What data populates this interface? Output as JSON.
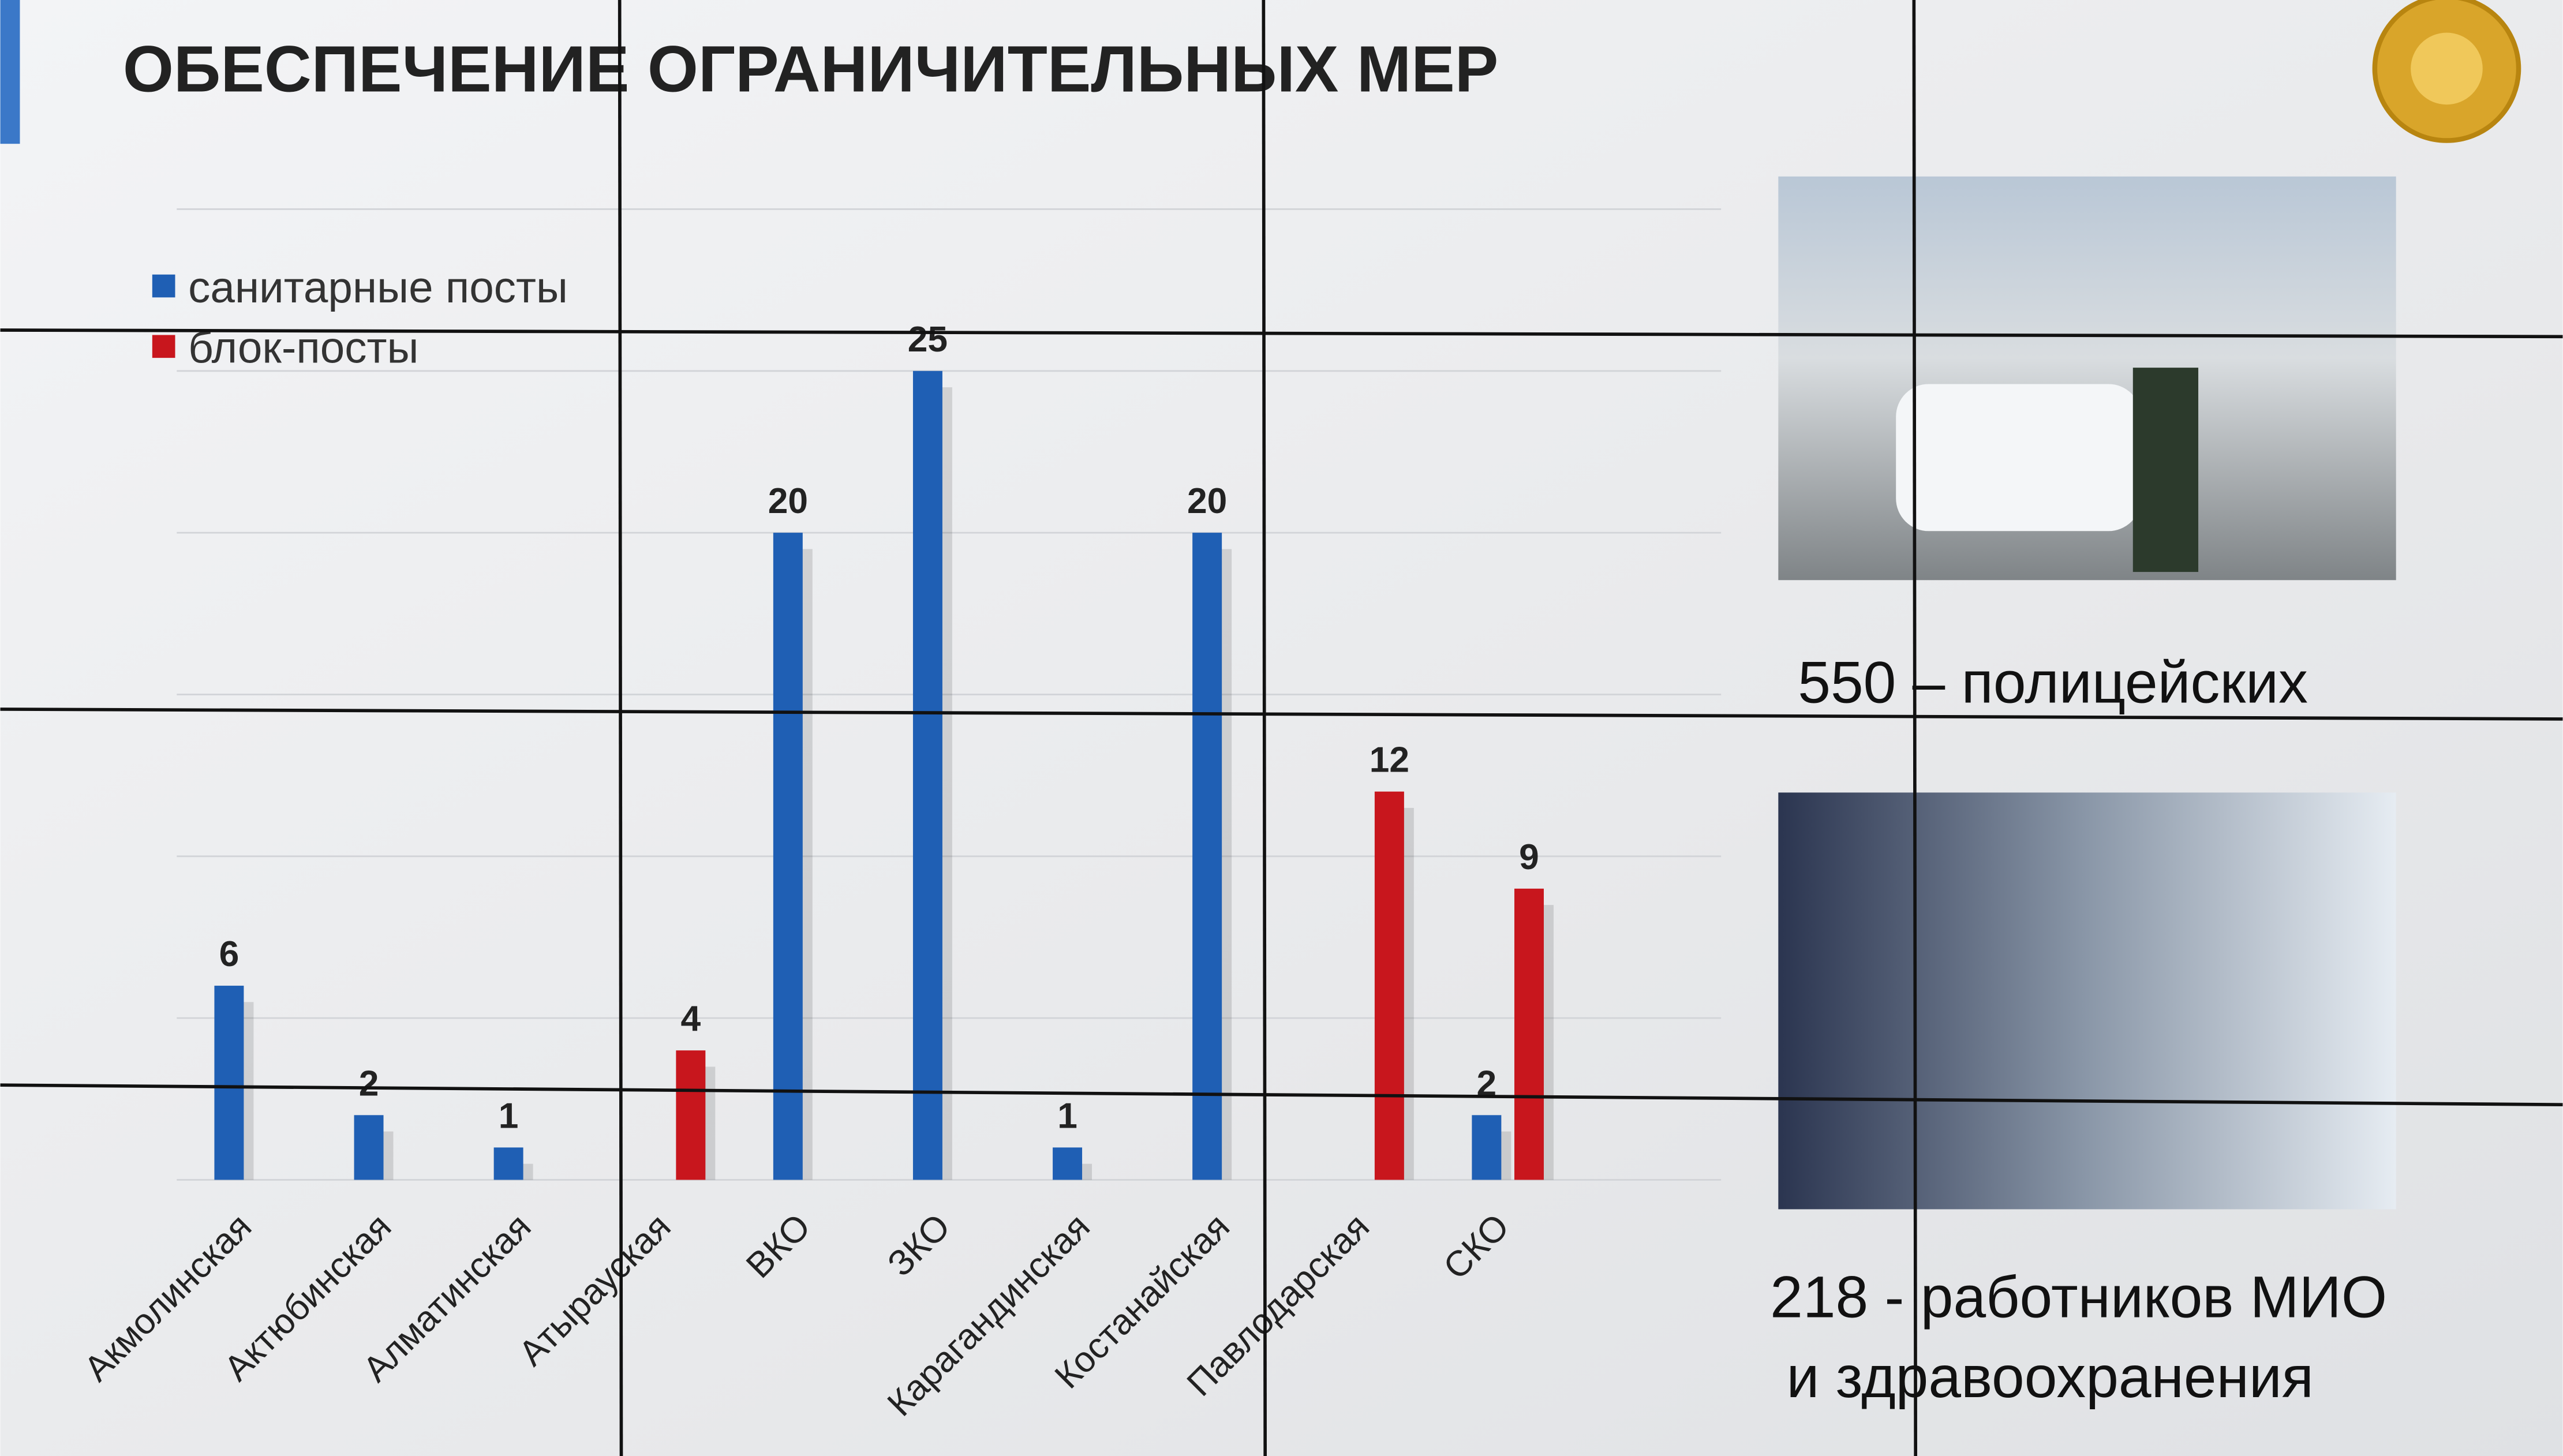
{
  "chart_data": {
    "type": "bar",
    "title": "ОБЕСПЕЧЕНИЕ ОГРАНИЧИТЕЛЬНЫХ МЕР",
    "categories": [
      "Акмолинская",
      "Актюбинская",
      "Алматинская",
      "Атырауская",
      "ВКО",
      "ЗКО",
      "Карагандинская",
      "Костанайская",
      "Павлодарская",
      "СКО"
    ],
    "series": [
      {
        "name": "санитарные посты",
        "color": "#1f5fb4",
        "values": [
          6,
          2,
          1,
          null,
          20,
          25,
          1,
          20,
          null,
          2
        ]
      },
      {
        "name": "блок-посты",
        "color": "#c8161d",
        "values": [
          null,
          null,
          null,
          4,
          null,
          null,
          null,
          null,
          12,
          9
        ]
      }
    ],
    "ylim": [
      0,
      30
    ],
    "yticks": [
      0,
      5,
      10,
      15,
      20,
      25,
      30
    ],
    "grid": true,
    "legend": "top-left",
    "annotations": [
      "550 – полицейских",
      "218 - работников МИО",
      "и здравоохранения"
    ]
  }
}
